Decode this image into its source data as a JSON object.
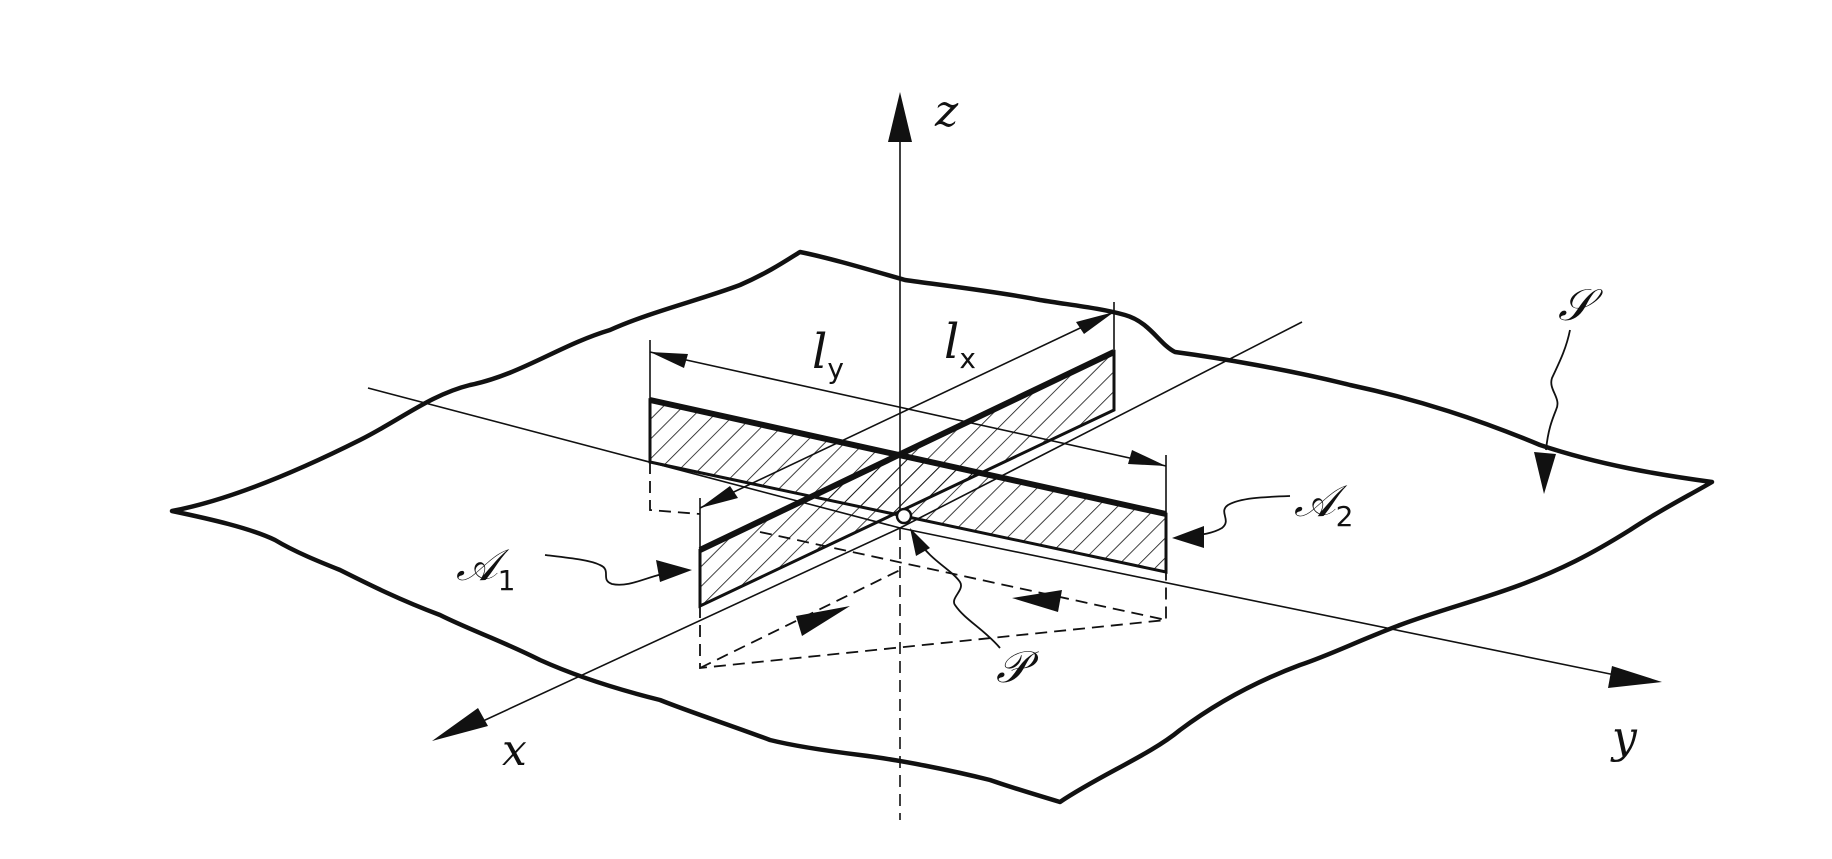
{
  "labels": {
    "axis_z": "z",
    "axis_x": "x",
    "axis_y": "y",
    "length_y_letter": "l",
    "length_y_sub": "y",
    "length_x_letter": "l",
    "length_x_sub": "x",
    "surface": "𝒮",
    "area1_letter": "𝒜",
    "area1_sub": "1",
    "area2_letter": "𝒜",
    "area2_sub": "2",
    "point": "𝒫"
  },
  "colors": {
    "ink": "#111111",
    "paper": "#ffffff"
  }
}
